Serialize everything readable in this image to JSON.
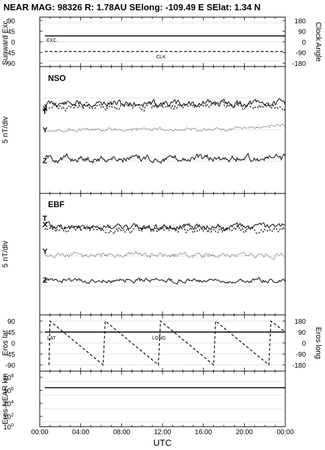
{
  "title": "NEAR MAG: 98326  R: 1.78AU  SElong: -109.49 E  SElat:    1.34 N",
  "xaxis": {
    "label": "UTC",
    "ticks": [
      "00:00",
      "04:00",
      "08:00",
      "12:00",
      "16:00",
      "20:00",
      "00:00"
    ]
  },
  "chart_data": [
    {
      "type": "line",
      "panel": "sunward-excursion",
      "ylabel": "Sunward Exc.",
      "ylabel_right": "Clock Angle",
      "yticks": [
        "90",
        "45",
        "0",
        "-45",
        "-90"
      ],
      "yticks_right": [
        "180",
        "90",
        "0",
        "-90",
        "-180"
      ],
      "ylim": [
        -90,
        90
      ],
      "ylim_right": [
        -180,
        180
      ],
      "series": [
        {
          "name": "EXC.",
          "x": [
            0.5,
            24
          ],
          "values": [
            25,
            25
          ]
        },
        {
          "name": "CLK",
          "axis": "right",
          "x": [
            0.5,
            24
          ],
          "values": [
            -82,
            -82
          ]
        }
      ]
    },
    {
      "type": "line",
      "panel": "NSO",
      "tag": "NSO",
      "ylabel": "5 nT/div",
      "components": [
        "T",
        "X",
        "Y",
        "Z"
      ]
    },
    {
      "type": "line",
      "panel": "EBF",
      "tag": "EBF",
      "ylabel": "5 nT/div",
      "components": [
        "T",
        "X",
        "Y",
        "Z"
      ]
    },
    {
      "type": "line",
      "panel": "eros-angles",
      "ylabel": "Eros lat",
      "ylabel_right": "Eros long",
      "yticks": [
        "90",
        "45",
        "0",
        "-45",
        "-90"
      ],
      "yticks_right": [
        "180",
        "90",
        "0",
        "-90",
        "-180"
      ],
      "ylim": [
        -90,
        90
      ],
      "ylim_right": [
        -180,
        180
      ],
      "series": [
        {
          "name": "LAT",
          "x": [
            0.5,
            24
          ],
          "values": [
            45,
            45
          ]
        },
        {
          "name": "LONG",
          "axis": "right",
          "x": [
            0.9,
            1.0,
            6.2,
            6.4,
            11.6,
            11.8,
            17.0,
            17.2,
            22.4,
            22.6,
            24.0
          ],
          "values": [
            -180,
            180,
            -180,
            180,
            -180,
            180,
            -180,
            180,
            -180,
            180,
            90
          ]
        }
      ]
    },
    {
      "type": "line",
      "panel": "eros-near-distance",
      "ylabel": "Eros-NEAR km",
      "yscale": "log",
      "yticks": [
        "10^8",
        "10^6",
        "10^4",
        "10^2",
        "10^0"
      ],
      "ylim": [
        1,
        100000000
      ],
      "series": [
        {
          "x": [
            0.5,
            24
          ],
          "values": [
            2000000,
            2000000
          ]
        }
      ]
    }
  ]
}
